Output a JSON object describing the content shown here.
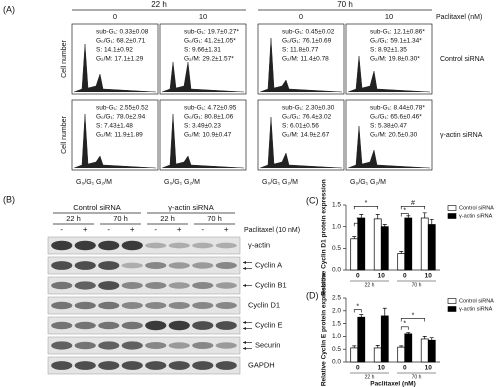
{
  "panel_a": {
    "label": "(A)",
    "times": [
      "22 h",
      "70 h"
    ],
    "doses": [
      "0",
      "10",
      "0",
      "10"
    ],
    "dose_label": "Paclitaxel (nM)",
    "rows": [
      "Control siRNA",
      "γ-actin siRNA"
    ],
    "y_label": "Cell number",
    "x_label": "G₀/G₁ G₂/M",
    "stats": [
      [
        [
          "sub-G₁: 0.33±0.08",
          "G₀/G₁: 68.2±0.71",
          "S: 14.1±0.92",
          "G₂/M: 17.1±1.29"
        ],
        [
          "sub-G₁: 19.7±0.27*",
          "G₀/G₁: 41.2±1.05*",
          "S: 9.66±1.31",
          "G₂/M: 29.2±1.57*"
        ],
        [
          "sub-G₁: 0.45±0.02",
          "G₀/G₁: 76.1±0.69",
          "S: 11.8±0.77",
          "G₂/M: 11.4±0.78"
        ],
        [
          "sub-G₁: 12.1±0.86*",
          "G₀/G₁: 59.1±1.34*",
          "S: 8.92±1.35",
          "G₂/M: 19.8±0.30*"
        ]
      ],
      [
        [
          "sub-G₁: 2.55±0.52",
          "G₀/G₁: 78.0±2.94",
          "S: 7.43±1.48",
          "G₂/M: 11.9±1.89"
        ],
        [
          "sub-G₁: 4.72±0.95",
          "G₀/G₁: 80.8±1.06",
          "S: 3.49±0.23",
          "G₂/M: 10.9±0.47"
        ],
        [
          "sub-G₁: 2.30±0.30",
          "G₀/G₁: 76.4±3.02",
          "S: 6.01±0.56",
          "G₂/M: 14.9±2.67"
        ],
        [
          "sub-G₁: 8.44±0.78*",
          "G₀/G₁: 65.6±0.46*",
          "S: 5.38±0.47",
          "G₂/M: 20.5±0.30"
        ]
      ]
    ]
  },
  "panel_b": {
    "label": "(B)",
    "groups": [
      "Control siRNA",
      "γ-actin siRNA"
    ],
    "times": [
      "22 h",
      "70 h",
      "22 h",
      "70 h"
    ],
    "signs": [
      "-",
      "+",
      "-",
      "+",
      "-",
      "+",
      "-",
      "+"
    ],
    "treatment": "Paclitaxel (10 nM)",
    "proteins": [
      "γ-actin",
      "Cyclin A",
      "Cyclin B1",
      "Cyclin D1",
      "Cyclin E",
      "Securin",
      "GAPDH"
    ]
  },
  "chart_data": [
    {
      "type": "bar",
      "label": "(C)",
      "y_label": "Relative Cyclin D1 protein expression",
      "categories": [
        "0",
        "10",
        "0",
        "10"
      ],
      "groups": [
        "22 h",
        "70 h"
      ],
      "series": [
        {
          "name": "Control siRNA",
          "color": "#ffffff",
          "values": [
            0.72,
            1.18,
            0.38,
            1.2
          ],
          "errors": [
            0.05,
            0.1,
            0.05,
            0.12
          ]
        },
        {
          "name": "γ-actin siRNA",
          "color": "#000000",
          "values": [
            1.2,
            1.0,
            1.2,
            1.05
          ],
          "errors": [
            0.08,
            0.05,
            0.05,
            0.12
          ]
        }
      ],
      "ylim": [
        0,
        1.5
      ],
      "yticks": [
        {
          "value": 0,
          "label": "0.0"
        },
        {
          "value": 0.5,
          "label": "0.5"
        },
        {
          "value": 1,
          "label": "1.0"
        },
        {
          "value": 1.5,
          "label": "1.5"
        }
      ],
      "annotations": [
        "*",
        "*",
        "#",
        "*"
      ]
    },
    {
      "type": "bar",
      "label": "(D)",
      "y_label": "Relative Cyclin E protein expression",
      "x_label": "Paclitaxel (nM)",
      "categories": [
        "0",
        "10",
        "0",
        "10"
      ],
      "groups": [
        "22 h",
        "70 h"
      ],
      "series": [
        {
          "name": "Control siRNA",
          "color": "#ffffff",
          "values": [
            0.55,
            0.55,
            0.58,
            0.9
          ],
          "errors": [
            0.08,
            0.1,
            0.05,
            0.1
          ]
        },
        {
          "name": "γ-actin siRNA",
          "color": "#000000",
          "values": [
            1.75,
            1.8,
            1.1,
            0.85
          ],
          "errors": [
            0.1,
            0.3,
            0.05,
            0.1
          ]
        }
      ],
      "ylim": [
        0,
        2.5
      ],
      "yticks": [
        {
          "value": 0,
          "label": "0.0"
        },
        {
          "value": 0.5,
          "label": "0.5"
        },
        {
          "value": 1,
          "label": "1.0"
        },
        {
          "value": 1.5,
          "label": "1.5"
        },
        {
          "value": 2,
          "label": "2.0"
        },
        {
          "value": 2.5,
          "label": "2.5"
        }
      ],
      "annotations": [
        "*",
        "*",
        "*"
      ]
    }
  ]
}
